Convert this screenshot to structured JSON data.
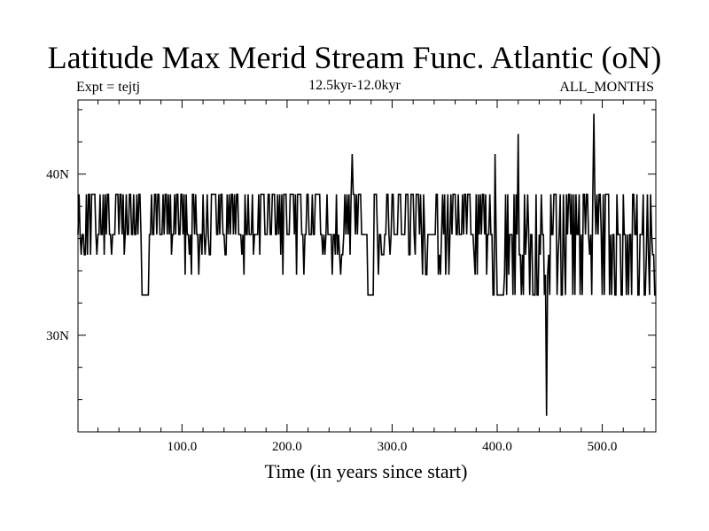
{
  "chart_data": {
    "type": "line",
    "title": "Latitude Max Merid Stream Func. Atlantic (oN)",
    "subtitle_left": "Expt = tejtj",
    "subtitle_center": "12.5kyr-12.0kyr",
    "subtitle_right": "ALL_MONTHS",
    "xlabel": "Time (in years since start)",
    "ylabel": "",
    "xlim": [
      1,
      551
    ],
    "ylim": [
      24,
      44.6
    ],
    "x_ticks": [
      100,
      200,
      300,
      400,
      500
    ],
    "x_tick_labels": [
      "100.0",
      "200.0",
      "300.0",
      "400.0",
      "500.0"
    ],
    "y_ticks": [
      30,
      40
    ],
    "y_tick_labels": [
      "30N",
      "40N"
    ],
    "baseline": 36.25,
    "levels": [
      25.0,
      32.5,
      33.75,
      35.0,
      36.25,
      38.75,
      41.25,
      42.5,
      43.75
    ],
    "segments": [
      {
        "from": 1,
        "to": 60,
        "low": 35.0,
        "high": 38.75,
        "note": "frequent flips 36.25-38.75"
      },
      {
        "from": 62,
        "to": 68,
        "low": 32.5,
        "high": 36.25,
        "note": "dip"
      },
      {
        "from": 70,
        "to": 255,
        "low": 33.75,
        "high": 38.75,
        "note": "flips 36.25-38.75"
      },
      {
        "from": 256,
        "to": 270,
        "low": 35.0,
        "high": 41.25,
        "note": "spike at 262"
      },
      {
        "from": 276,
        "to": 282,
        "low": 32.5,
        "high": 36.25,
        "note": "dip"
      },
      {
        "from": 283,
        "to": 395,
        "low": 33.75,
        "high": 38.75,
        "note": "flips"
      },
      {
        "from": 396,
        "to": 445,
        "low": 32.5,
        "high": 42.5,
        "note": "spikes at 398 and 420"
      },
      {
        "from": 446,
        "to": 448,
        "low": 25.0,
        "high": 36.25,
        "note": "minimum near 447"
      },
      {
        "from": 449,
        "to": 551,
        "low": 32.5,
        "high": 43.75,
        "note": "maximum near 492"
      }
    ],
    "extremes": {
      "max": {
        "x": 492,
        "y": 43.75
      },
      "min": {
        "x": 447,
        "y": 25.0
      }
    }
  }
}
